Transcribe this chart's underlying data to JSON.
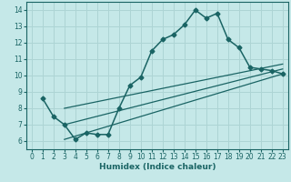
{
  "xlabel": "Humidex (Indice chaleur)",
  "bg_color": "#c5e8e8",
  "line_color": "#1a6464",
  "grid_color": "#add4d4",
  "xlim": [
    -0.5,
    23.5
  ],
  "ylim": [
    5.5,
    14.5
  ],
  "yticks": [
    6,
    7,
    8,
    9,
    10,
    11,
    12,
    13,
    14
  ],
  "xticks": [
    0,
    1,
    2,
    3,
    4,
    5,
    6,
    7,
    8,
    9,
    10,
    11,
    12,
    13,
    14,
    15,
    16,
    17,
    18,
    19,
    20,
    21,
    22,
    23
  ],
  "main_x": [
    1,
    2,
    3,
    4,
    5,
    6,
    7,
    8,
    9,
    10,
    11,
    12,
    13,
    14,
    15,
    16,
    17,
    18,
    19,
    20,
    21,
    22,
    23
  ],
  "main_y": [
    8.6,
    7.5,
    7.0,
    6.1,
    6.5,
    6.4,
    6.4,
    8.0,
    9.4,
    9.9,
    11.5,
    12.2,
    12.5,
    13.1,
    14.0,
    13.5,
    13.8,
    12.2,
    11.7,
    10.5,
    10.4,
    10.3,
    10.1
  ],
  "trend_lines": [
    {
      "x": [
        3,
        23
      ],
      "y": [
        6.1,
        10.1
      ]
    },
    {
      "x": [
        3,
        23
      ],
      "y": [
        7.0,
        10.4
      ]
    },
    {
      "x": [
        3,
        23
      ],
      "y": [
        8.0,
        10.7
      ]
    }
  ]
}
